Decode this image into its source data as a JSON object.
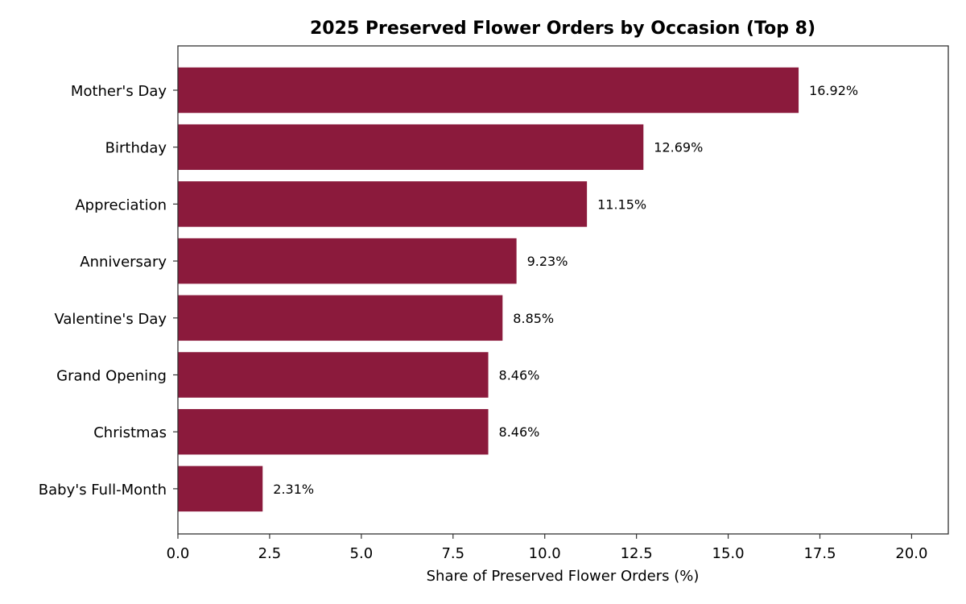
{
  "colors": {
    "bar": "#8B1A3C",
    "axis": "#333333",
    "background": "#ffffff"
  },
  "chart_data": {
    "type": "bar",
    "orientation": "horizontal",
    "title": "2025 Preserved Flower Orders by Occasion (Top 8)",
    "xlabel": "Share of Preserved Flower Orders (%)",
    "ylabel": "",
    "categories": [
      "Mother's Day",
      "Birthday",
      "Appreciation",
      "Anniversary",
      "Valentine's Day",
      "Grand Opening",
      "Christmas",
      "Baby's Full-Month"
    ],
    "values": [
      16.92,
      12.69,
      11.15,
      9.23,
      8.85,
      8.46,
      8.46,
      2.31
    ],
    "value_labels": [
      "16.92%",
      "12.69%",
      "11.15%",
      "9.23%",
      "8.85%",
      "8.46%",
      "8.46%",
      "2.31%"
    ],
    "xlim": [
      0,
      21
    ],
    "xticks": [
      0,
      2.5,
      5,
      7.5,
      10,
      12.5,
      15,
      17.5,
      20
    ],
    "xtick_labels": [
      "0.0",
      "2.5",
      "5.0",
      "7.5",
      "10.0",
      "12.5",
      "15.0",
      "17.5",
      "20.0"
    ],
    "grid": false,
    "legend": "none"
  }
}
